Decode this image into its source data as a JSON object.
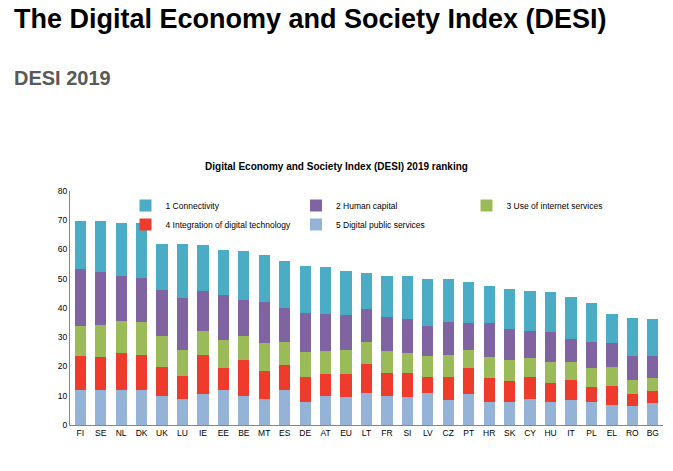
{
  "page": {
    "heading": "The Digital Economy and Society Index (DESI)",
    "subheading": "DESI 2019"
  },
  "chart_data": {
    "type": "bar",
    "title": "Digital Economy and Society Index (DESI) 2019 ranking",
    "stacked": true,
    "grid": false,
    "legend": "top",
    "categories": [
      "FI",
      "SE",
      "NL",
      "DK",
      "UK",
      "LU",
      "IE",
      "EE",
      "BE",
      "MT",
      "ES",
      "DE",
      "AT",
      "EU",
      "LT",
      "FR",
      "SI",
      "LV",
      "CZ",
      "PT",
      "HR",
      "SK",
      "CY",
      "HU",
      "IT",
      "PL",
      "EL",
      "RO",
      "BG"
    ],
    "series": [
      {
        "name": "1 Connectivity",
        "color": "#4BACC6",
        "values": [
          16.4,
          17.5,
          17.9,
          18.6,
          16,
          18.7,
          15.7,
          15.5,
          16.8,
          16.2,
          16,
          16.1,
          16.2,
          15,
          12.5,
          14.2,
          14.8,
          16,
          14.7,
          14,
          12.7,
          13.7,
          13.8,
          13.8,
          14.4,
          13.1,
          10,
          13,
          12.7
        ]
      },
      {
        "name": "2 Human capital",
        "color": "#8064A2",
        "values": [
          19.5,
          18,
          15.5,
          15,
          15.5,
          17.5,
          13.5,
          15.5,
          12.5,
          14,
          11.5,
          13.3,
          12.5,
          12,
          11,
          11.5,
          11.5,
          10.5,
          11.5,
          9.5,
          11.5,
          10.5,
          9,
          10,
          8,
          9,
          8,
          8,
          7.5
        ]
      },
      {
        "name": "3 Use of internet services",
        "color": "#9BBB59",
        "values": [
          10.5,
          11,
          11,
          11.5,
          10.5,
          9.2,
          8.3,
          9.5,
          8,
          9.5,
          8,
          8.7,
          7.8,
          8,
          7.5,
          7.5,
          7,
          7,
          7.3,
          6,
          7.3,
          7.3,
          6.5,
          7.2,
          6,
          6.5,
          6.5,
          5,
          4.5
        ]
      },
      {
        "name": "4 Integration of digital technology",
        "color": "#EE3B2C",
        "values": [
          11.5,
          11.5,
          12.5,
          11.8,
          10,
          7.8,
          13.5,
          7.5,
          12.5,
          9.5,
          8.5,
          8.5,
          7.5,
          8,
          10,
          8,
          8,
          5.5,
          8,
          9,
          8,
          7,
          7.5,
          6.5,
          7,
          5,
          6.5,
          4,
          4
        ]
      },
      {
        "name": "5 Digital public services",
        "color": "#95B3D7",
        "values": [
          12,
          11.8,
          12,
          12,
          10,
          8.8,
          10.5,
          12,
          9.8,
          9,
          12,
          7.8,
          10,
          9.5,
          11,
          9.8,
          9.7,
          11,
          8.5,
          10.5,
          8,
          8,
          9,
          8,
          8.5,
          8,
          7,
          6.5,
          7.5
        ]
      }
    ],
    "ylim": [
      0,
      80
    ],
    "yticks": [
      0,
      10,
      20,
      30,
      40,
      50,
      60,
      70,
      80
    ]
  }
}
